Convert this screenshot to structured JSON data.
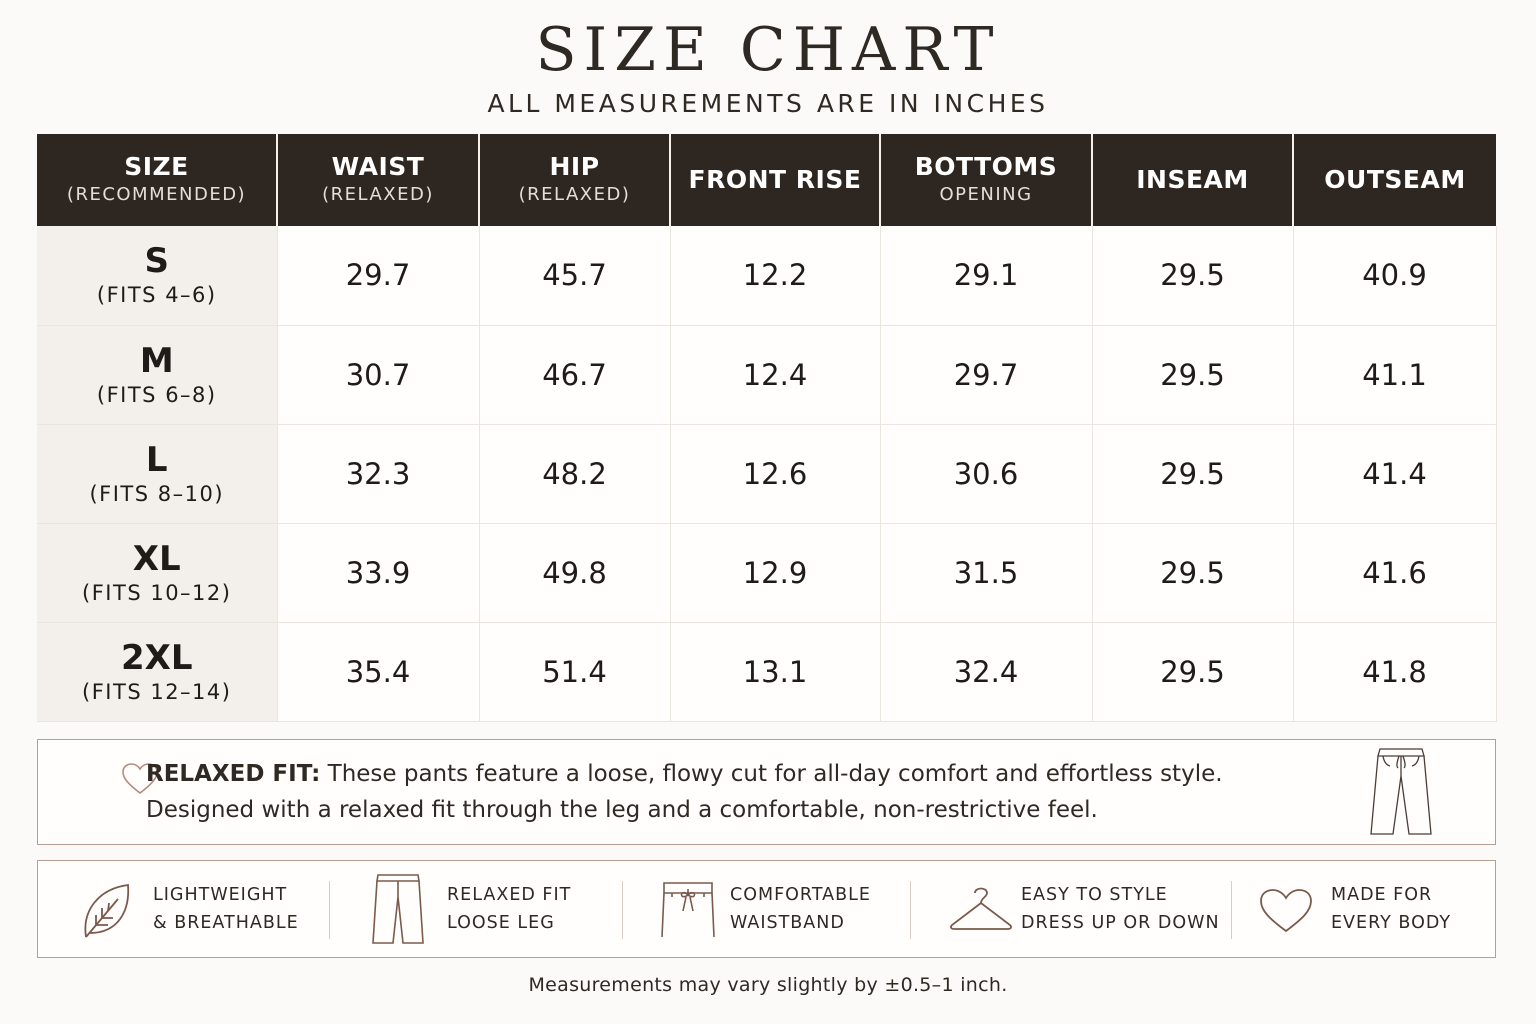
{
  "header": {
    "title": "SIZE CHART",
    "subtitle": "ALL MEASUREMENTS ARE IN INCHES"
  },
  "table": {
    "columns": [
      {
        "main": "SIZE",
        "sub": "(RECOMMENDED)"
      },
      {
        "main": "WAIST",
        "sub": "(RELAXED)"
      },
      {
        "main": "HIP",
        "sub": "(RELAXED)"
      },
      {
        "main": "FRONT RISE",
        "sub": ""
      },
      {
        "main": "BOTTOMS",
        "sub": "OPENING"
      },
      {
        "main": "INSEAM",
        "sub": ""
      },
      {
        "main": "OUTSEAM",
        "sub": ""
      }
    ],
    "rows": [
      {
        "size": "S",
        "fits": "(FITS 4–6)",
        "values": [
          "29.7",
          "45.7",
          "12.2",
          "29.1",
          "29.5",
          "40.9"
        ]
      },
      {
        "size": "M",
        "fits": "(FITS 6–8)",
        "values": [
          "30.7",
          "46.7",
          "12.4",
          "29.7",
          "29.5",
          "41.1"
        ]
      },
      {
        "size": "L",
        "fits": "(FITS 8–10)",
        "values": [
          "32.3",
          "48.2",
          "12.6",
          "30.6",
          "29.5",
          "41.4"
        ]
      },
      {
        "size": "XL",
        "fits": "(FITS 10–12)",
        "values": [
          "33.9",
          "49.8",
          "12.9",
          "31.5",
          "29.5",
          "41.6"
        ]
      },
      {
        "size": "2XL",
        "fits": "(FITS 12–14)",
        "values": [
          "35.4",
          "51.4",
          "13.1",
          "32.4",
          "29.5",
          "41.8"
        ]
      }
    ]
  },
  "fit_note": {
    "label": "RELAXED FIT:",
    "line1": " These pants feature a loose, flowy cut for all-day comfort and effortless style.",
    "line2": "Designed with a relaxed fit through the leg and a comfortable, non-restrictive feel.",
    "icon": "heart-icon"
  },
  "features": [
    {
      "icon": "leaf-icon",
      "line1": "LIGHTWEIGHT",
      "line2": "& BREATHABLE"
    },
    {
      "icon": "pants-icon",
      "line1": "RELAXED FIT",
      "line2": "LOOSE LEG"
    },
    {
      "icon": "waistband-icon",
      "line1": "COMFORTABLE",
      "line2": "WAISTBAND"
    },
    {
      "icon": "hanger-icon",
      "line1": "EASY TO STYLE",
      "line2": "DRESS UP OR DOWN"
    },
    {
      "icon": "heart-icon",
      "line1": "MADE FOR",
      "line2": "EVERY BODY"
    }
  ],
  "footnote": "Measurements may vary slightly by ±0.5–1 inch.",
  "colors": {
    "header_bg": "#2e2620",
    "size_col_bg": "#f3f0eb",
    "border_accent": "#b79e91",
    "icon_stroke": "#7a5a4c"
  }
}
